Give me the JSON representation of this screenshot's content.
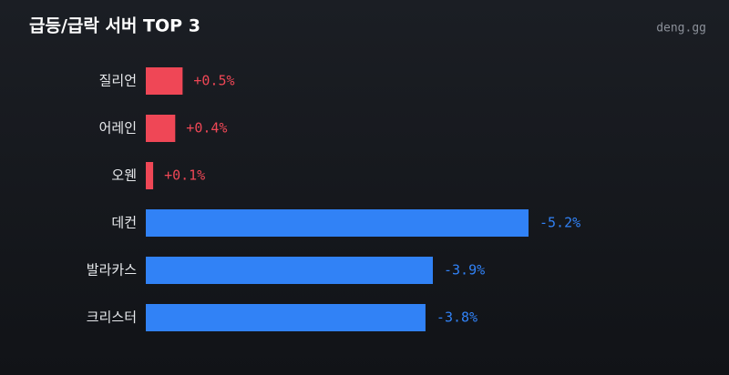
{
  "chart_data": {
    "type": "hbar",
    "title": "급등/급락 서버 TOP 3",
    "source": "deng.gg",
    "categories": [
      "질리언",
      "어레인",
      "오웬",
      "데컨",
      "발라카스",
      "크리스터"
    ],
    "values": [
      0.5,
      0.4,
      0.1,
      -5.2,
      -3.9,
      -3.8
    ],
    "value_labels": [
      "+0.5%",
      "+0.4%",
      "+0.1%",
      "-5.2%",
      "-3.9%",
      "-3.8%"
    ],
    "colors": [
      "#ef4756",
      "#ef4756",
      "#ef4756",
      "#3182f6",
      "#3182f6",
      "#3182f6"
    ],
    "xlim": [
      0,
      5.2
    ]
  }
}
